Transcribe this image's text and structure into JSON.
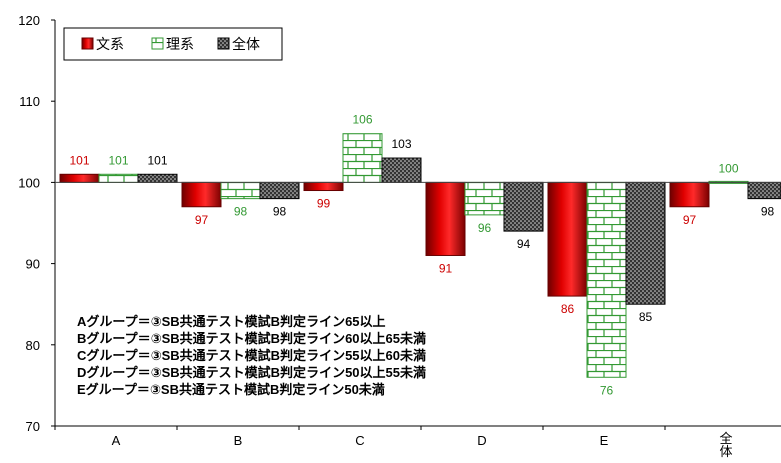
{
  "chart_data": {
    "type": "bar",
    "categories": [
      "A",
      "B",
      "C",
      "D",
      "E",
      "全体"
    ],
    "series": [
      {
        "name": "文系",
        "values": [
          101,
          97,
          99,
          91,
          86,
          97
        ],
        "labels": [
          "101",
          "97",
          "99",
          "91",
          "86",
          "97"
        ],
        "color": "#cc0000"
      },
      {
        "name": "理系",
        "values": [
          101,
          98,
          106,
          96,
          76,
          100
        ],
        "labels": [
          "101",
          "98",
          "106",
          "96",
          "76",
          "100"
        ],
        "color": "#339933"
      },
      {
        "name": "全体",
        "values": [
          101,
          98,
          103,
          94,
          85,
          98
        ],
        "labels": [
          "101",
          "98",
          "103",
          "94",
          "85",
          "98"
        ],
        "color": "#222222"
      }
    ],
    "title": "",
    "xlabel": "",
    "ylabel": "",
    "ylim": [
      70,
      120
    ],
    "yticks": [
      "70",
      "80",
      "90",
      "100",
      "110",
      "120"
    ],
    "baseline": 100,
    "grid": false,
    "legend_position": "top-left",
    "annotations": [
      "Aグループ＝③SB共通テスト模試B判定ライン65以上",
      "Bグループ＝③SB共通テスト模試B判定ライン60以上65未満",
      "Cグループ＝③SB共通テスト模試B判定ライン55以上60未満",
      "Dグループ＝③SB共通テスト模試B判定ライン50以上55未満",
      "Eグループ＝③SB共通テスト模試B判定ライン50未満"
    ]
  }
}
